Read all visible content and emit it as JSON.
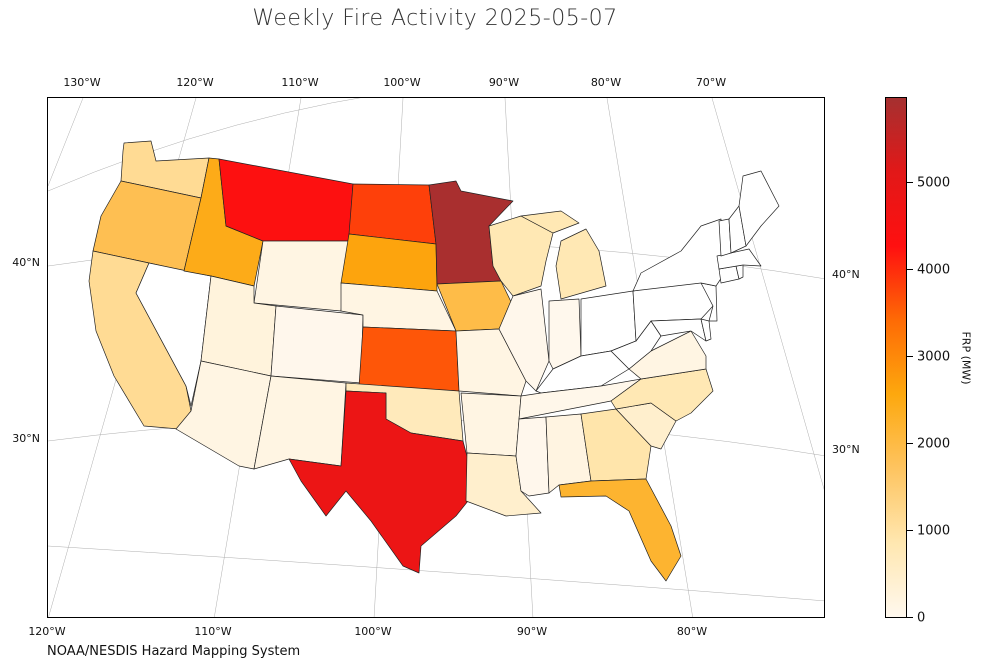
{
  "title": "Weekly Fire Activity 2025-05-07",
  "credit": "NOAA/NESDIS Hazard Mapping System",
  "colorbar": {
    "label": "FRP (MW)",
    "ticks": [
      "0",
      "1000",
      "2000",
      "3000",
      "4000",
      "5000"
    ],
    "max": 5950,
    "colors": [
      "#fff8ee",
      "#ffe7b0",
      "#fec460",
      "#fda80e",
      "#fe6b05",
      "#ff1010",
      "#e21818",
      "#a53030"
    ]
  },
  "lon_ticks_top": [
    "130°W",
    "120°W",
    "110°W",
    "100°W",
    "90°W",
    "80°W",
    "70°W"
  ],
  "lon_ticks_bottom": [
    "120°W",
    "110°W",
    "100°W",
    "90°W",
    "80°W"
  ],
  "lat_ticks_left": [
    "40°N",
    "30°N"
  ],
  "lat_ticks_right": [
    "40°N",
    "30°N"
  ],
  "states": [
    {
      "name": "Washington",
      "frp": 1150
    },
    {
      "name": "Oregon",
      "frp": 1850
    },
    {
      "name": "California",
      "frp": 1150
    },
    {
      "name": "Nevada",
      "frp": 0
    },
    {
      "name": "Idaho",
      "frp": 2450
    },
    {
      "name": "Montana",
      "frp": 4300
    },
    {
      "name": "Wyoming",
      "frp": 150
    },
    {
      "name": "Utah",
      "frp": 250
    },
    {
      "name": "Arizona",
      "frp": 150
    },
    {
      "name": "Colorado",
      "frp": 30
    },
    {
      "name": "New Mexico",
      "frp": 150
    },
    {
      "name": "North Dakota",
      "frp": 3800
    },
    {
      "name": "South Dakota",
      "frp": 2600
    },
    {
      "name": "Nebraska",
      "frp": 150
    },
    {
      "name": "Kansas",
      "frp": 3600
    },
    {
      "name": "Oklahoma",
      "frp": 700
    },
    {
      "name": "Texas",
      "frp": 4800
    },
    {
      "name": "Minnesota",
      "frp": 5900
    },
    {
      "name": "Iowa",
      "frp": 1950
    },
    {
      "name": "Missouri",
      "frp": 150
    },
    {
      "name": "Arkansas",
      "frp": 150
    },
    {
      "name": "Louisiana",
      "frp": 450
    },
    {
      "name": "Wisconsin",
      "frp": 800
    },
    {
      "name": "Illinois",
      "frp": 40
    },
    {
      "name": "Michigan",
      "frp": 800
    },
    {
      "name": "Indiana",
      "frp": 20
    },
    {
      "name": "Ohio",
      "frp": 0
    },
    {
      "name": "Kentucky",
      "frp": 0
    },
    {
      "name": "Tennessee",
      "frp": 50
    },
    {
      "name": "Mississippi",
      "frp": 30
    },
    {
      "name": "Alabama",
      "frp": 180
    },
    {
      "name": "Georgia",
      "frp": 900
    },
    {
      "name": "Florida",
      "frp": 2200
    },
    {
      "name": "South Carolina",
      "frp": 450
    },
    {
      "name": "North Carolina",
      "frp": 800
    },
    {
      "name": "Virginia",
      "frp": 150
    },
    {
      "name": "West Virginia",
      "frp": 0
    },
    {
      "name": "Pennsylvania",
      "frp": 0
    },
    {
      "name": "New York",
      "frp": 0
    },
    {
      "name": "Maryland",
      "frp": 0
    },
    {
      "name": "Delaware",
      "frp": 0
    },
    {
      "name": "New Jersey",
      "frp": 0
    },
    {
      "name": "Connecticut",
      "frp": 0
    },
    {
      "name": "Rhode Island",
      "frp": 0
    },
    {
      "name": "Massachusetts",
      "frp": 0
    },
    {
      "name": "Vermont",
      "frp": 0
    },
    {
      "name": "New Hampshire",
      "frp": 0
    },
    {
      "name": "Maine",
      "frp": 0
    }
  ]
}
